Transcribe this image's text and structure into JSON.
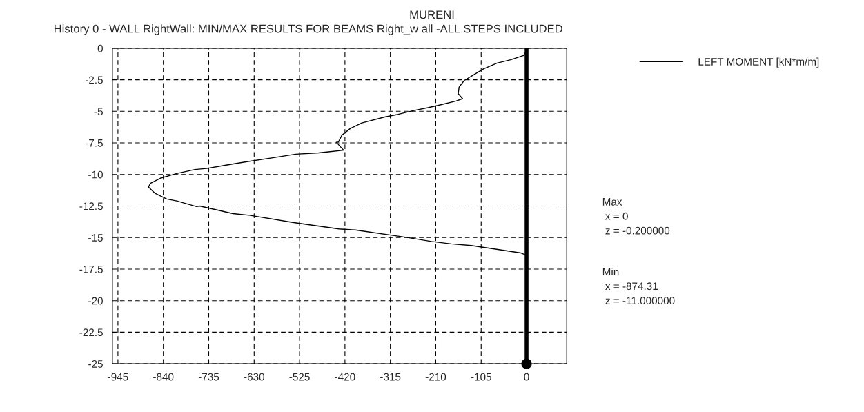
{
  "chart_data": {
    "type": "line",
    "title": "MURENI",
    "subtitle": "History 0 - WALL RightWall: MIN/MAX RESULTS FOR BEAMS Right_w all -ALL STEPS INCLUDED",
    "series": [
      {
        "name": "LEFT MOMENT [kN*m/m]",
        "color": "#000000",
        "x": [
          0,
          -7,
          -37,
          -68,
          -99,
          -125,
          -144,
          -156,
          -158,
          -148,
          -163,
          -205,
          -228,
          -259,
          -297,
          -328,
          -381,
          -408,
          -427,
          -435,
          -440,
          -423,
          -458,
          -481,
          -534,
          -587,
          -649,
          -695,
          -740,
          -767,
          -809,
          -847,
          -870,
          -874.31,
          -859,
          -832,
          -809,
          -763,
          -756,
          -679,
          -641,
          -541,
          -434,
          -396,
          -281,
          -220,
          -174,
          -128,
          -13,
          0
        ],
        "values": [
          -0.2,
          -0.58,
          -0.92,
          -1.18,
          -1.63,
          -2.16,
          -2.55,
          -3.08,
          -3.6,
          -4.0,
          -4.18,
          -4.53,
          -4.71,
          -4.92,
          -5.24,
          -5.45,
          -5.92,
          -6.37,
          -6.89,
          -7.42,
          -7.45,
          -8.08,
          -8.21,
          -8.29,
          -8.39,
          -8.68,
          -9.0,
          -9.26,
          -9.53,
          -9.61,
          -9.92,
          -10.3,
          -10.7,
          -11.0,
          -11.5,
          -11.95,
          -12.1,
          -12.55,
          -12.5,
          -13.1,
          -13.23,
          -13.8,
          -14.32,
          -14.4,
          -14.97,
          -15.31,
          -15.5,
          -15.63,
          -16.22,
          -16.4
        ]
      }
    ],
    "xlim": [
      -958,
      93
    ],
    "xticks": [
      -945,
      -840,
      -735,
      -630,
      -525,
      -420,
      -315,
      -210,
      -105,
      0
    ],
    "ylim": [
      -25,
      0
    ],
    "yticks": [
      0,
      -2.5,
      -5,
      -7.5,
      -10,
      -12.5,
      -15,
      -17.5,
      -20,
      -22.5,
      -25
    ],
    "ref_lines": [
      {
        "axis": "x",
        "value": 0,
        "color": "#000000"
      }
    ],
    "grid": true,
    "legend": "top right",
    "marker": "none",
    "line_style": "solid",
    "annotations": [
      "Max\n x = 0\n z = -0.200000",
      "Min\n x = -874.31\n z = -11.000000"
    ]
  }
}
